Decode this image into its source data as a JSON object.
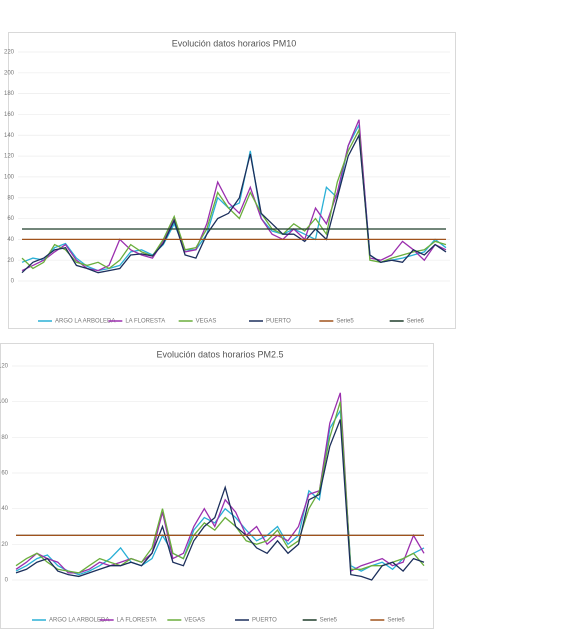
{
  "chart_data": [
    {
      "type": "line",
      "title": "Evolución datos horarios PM10",
      "categories": [
        null,
        null,
        null,
        null,
        null,
        null,
        null,
        null,
        null,
        null,
        null,
        null,
        null,
        null,
        null,
        null,
        null,
        null,
        null,
        null,
        null,
        null,
        null,
        null,
        null,
        null,
        null,
        null,
        null,
        null,
        null,
        null,
        null,
        null,
        null,
        null,
        null,
        null,
        null,
        null
      ],
      "ylim": [
        0,
        220
      ],
      "yticks": [
        0,
        20,
        40,
        60,
        80,
        100,
        120,
        140,
        160,
        180,
        200,
        220
      ],
      "grid": true,
      "series": [
        {
          "name": "ARGO LA ARBOLEDA",
          "color": "#2ab0d6",
          "values": [
            18,
            22,
            20,
            32,
            36,
            22,
            14,
            10,
            12,
            15,
            28,
            30,
            25,
            35,
            55,
            30,
            30,
            45,
            80,
            70,
            75,
            125,
            60,
            48,
            45,
            50,
            45,
            40,
            90,
            80,
            130,
            150,
            25,
            18,
            20,
            22,
            25,
            28,
            40,
            32
          ]
        },
        {
          "name": "LA FLORESTA",
          "color": "#9b2fae",
          "values": [
            10,
            15,
            20,
            28,
            35,
            20,
            12,
            10,
            15,
            40,
            30,
            25,
            22,
            38,
            60,
            28,
            30,
            55,
            95,
            75,
            65,
            90,
            60,
            45,
            40,
            50,
            40,
            70,
            55,
            85,
            130,
            155,
            22,
            20,
            25,
            38,
            30,
            20,
            35,
            30
          ]
        },
        {
          "name": "VEGAS",
          "color": "#6aae3c",
          "values": [
            22,
            12,
            18,
            35,
            30,
            18,
            15,
            18,
            12,
            20,
            35,
            28,
            24,
            40,
            62,
            30,
            32,
            50,
            85,
            70,
            60,
            85,
            65,
            50,
            45,
            55,
            48,
            60,
            45,
            95,
            125,
            145,
            20,
            18,
            22,
            25,
            28,
            30,
            38,
            35
          ]
        },
        {
          "name": "PUERTO",
          "color": "#1c2f5c",
          "values": [
            8,
            18,
            22,
            30,
            32,
            15,
            12,
            8,
            10,
            12,
            25,
            26,
            24,
            36,
            58,
            25,
            22,
            45,
            60,
            65,
            80,
            122,
            65,
            55,
            45,
            45,
            38,
            50,
            40,
            80,
            120,
            140,
            25,
            18,
            20,
            18,
            30,
            25,
            35,
            28
          ]
        },
        {
          "name": "Serie5",
          "color": "#a0521c",
          "values": [
            40,
            40,
            40,
            40,
            40,
            40,
            40,
            40,
            40,
            40,
            40,
            40,
            40,
            40,
            40,
            40,
            40,
            40,
            40,
            40,
            40,
            40,
            40,
            40,
            40,
            40,
            40,
            40,
            40,
            40,
            40,
            40,
            40,
            40,
            40,
            40,
            40,
            40,
            40,
            40
          ]
        },
        {
          "name": "Serie6",
          "color": "#1f3d2b",
          "values": [
            50,
            50,
            50,
            50,
            50,
            50,
            50,
            50,
            50,
            50,
            50,
            50,
            50,
            50,
            50,
            50,
            50,
            50,
            50,
            50,
            50,
            50,
            50,
            50,
            50,
            50,
            50,
            50,
            50,
            50,
            50,
            50,
            50,
            50,
            50,
            50,
            50,
            50,
            50,
            50
          ]
        }
      ]
    },
    {
      "type": "line",
      "title": "Evolución datos horarios PM2.5",
      "categories": [
        null,
        null,
        null,
        null,
        null,
        null,
        null,
        null,
        null,
        null,
        null,
        null,
        null,
        null,
        null,
        null,
        null,
        null,
        null,
        null,
        null,
        null,
        null,
        null,
        null,
        null,
        null,
        null,
        null,
        null,
        null,
        null,
        null,
        null,
        null,
        null,
        null,
        null,
        null,
        null
      ],
      "ylim": [
        0,
        120
      ],
      "yticks": [
        0,
        20,
        40,
        60,
        80,
        100,
        120
      ],
      "grid": true,
      "series": [
        {
          "name": "ARGO LA ARBOLEDA",
          "color": "#2ab0d6",
          "values": [
            5,
            8,
            12,
            14,
            8,
            5,
            3,
            5,
            8,
            12,
            18,
            10,
            8,
            12,
            25,
            15,
            12,
            28,
            35,
            32,
            40,
            35,
            28,
            22,
            25,
            30,
            20,
            25,
            50,
            45,
            85,
            95,
            8,
            5,
            8,
            10,
            6,
            12,
            15,
            18
          ]
        },
        {
          "name": "LA FLORESTA",
          "color": "#9b2fae",
          "values": [
            6,
            10,
            15,
            12,
            10,
            4,
            4,
            6,
            10,
            8,
            10,
            12,
            10,
            15,
            38,
            12,
            15,
            30,
            40,
            30,
            45,
            38,
            25,
            30,
            20,
            25,
            22,
            30,
            48,
            50,
            88,
            105,
            5,
            8,
            10,
            12,
            8,
            10,
            25,
            15
          ]
        },
        {
          "name": "VEGAS",
          "color": "#6aae3c",
          "values": [
            8,
            12,
            15,
            10,
            6,
            5,
            4,
            8,
            12,
            10,
            8,
            12,
            10,
            18,
            40,
            15,
            12,
            25,
            32,
            28,
            35,
            30,
            22,
            20,
            22,
            28,
            18,
            22,
            40,
            50,
            80,
            100,
            6,
            6,
            8,
            8,
            10,
            12,
            15,
            8
          ]
        },
        {
          "name": "PUERTO",
          "color": "#1c2f5c",
          "values": [
            4,
            6,
            10,
            12,
            5,
            3,
            2,
            4,
            6,
            8,
            8,
            10,
            8,
            15,
            30,
            10,
            8,
            22,
            30,
            35,
            52,
            30,
            25,
            18,
            15,
            22,
            15,
            20,
            45,
            48,
            75,
            90,
            3,
            2,
            0,
            8,
            10,
            5,
            12,
            10
          ]
        },
        {
          "name": "Serie5",
          "color": "#1f3d2b",
          "values": [
            25,
            25,
            25,
            25,
            25,
            25,
            25,
            25,
            25,
            25,
            25,
            25,
            25,
            25,
            25,
            25,
            25,
            25,
            25,
            25,
            25,
            25,
            25,
            25,
            25,
            25,
            25,
            25,
            25,
            25,
            25,
            25,
            25,
            25,
            25,
            25,
            25,
            25,
            25,
            25
          ]
        },
        {
          "name": "Serie6",
          "color": "#a0521c",
          "values": [
            25,
            25,
            25,
            25,
            25,
            25,
            25,
            25,
            25,
            25,
            25,
            25,
            25,
            25,
            25,
            25,
            25,
            25,
            25,
            25,
            25,
            25,
            25,
            25,
            25,
            25,
            25,
            25,
            25,
            25,
            25,
            25,
            25,
            25,
            25,
            25,
            25,
            25,
            25,
            25
          ]
        }
      ]
    }
  ]
}
